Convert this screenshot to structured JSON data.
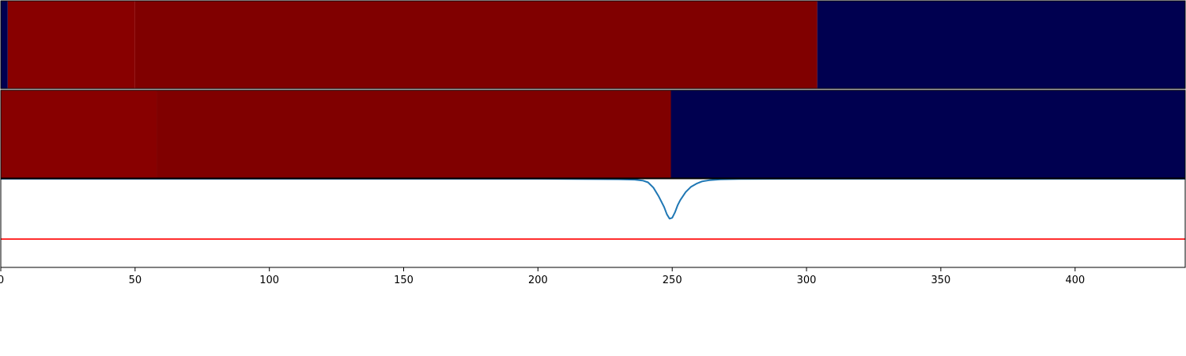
{
  "chart_data": [
    {
      "type": "heatmap",
      "panel": "top",
      "segments": [
        {
          "x_start": 0,
          "x_end": 2.6,
          "color": "#000050"
        },
        {
          "x_start": 2.6,
          "x_end": 50,
          "color": "#880000"
        },
        {
          "x_start": 50,
          "x_end": 304,
          "color": "#800000"
        },
        {
          "x_start": 304,
          "x_end": 441,
          "color": "#000050"
        }
      ]
    },
    {
      "type": "heatmap",
      "panel": "middle",
      "segments": [
        {
          "x_start": 0,
          "x_end": 58,
          "color": "#880000"
        },
        {
          "x_start": 58,
          "x_end": 249.5,
          "color": "#800000"
        },
        {
          "x_start": 249.5,
          "x_end": 441,
          "color": "#000050"
        }
      ]
    },
    {
      "type": "line",
      "panel": "bottom",
      "ylim": [
        -1.0,
        0.0
      ],
      "series": [
        {
          "color": "#1f77b4",
          "x": [
            0,
            100,
            200,
            230,
            236,
            239,
            241,
            243,
            245,
            247,
            248,
            249,
            250,
            251,
            252,
            253,
            255,
            257,
            259,
            261,
            264,
            268,
            275,
            300,
            441
          ],
          "y": [
            0,
            0,
            0,
            -0.005,
            -0.01,
            -0.02,
            -0.04,
            -0.1,
            -0.2,
            -0.32,
            -0.4,
            -0.45,
            -0.44,
            -0.38,
            -0.3,
            -0.24,
            -0.15,
            -0.09,
            -0.055,
            -0.03,
            -0.015,
            -0.007,
            -0.002,
            0,
            0
          ]
        }
      ],
      "hline": {
        "y": -0.68,
        "color": "#ff0000"
      }
    }
  ],
  "x_axis": {
    "xlim": [
      0,
      441
    ],
    "ticks": [
      0,
      50,
      100,
      150,
      200,
      250,
      300,
      350,
      400
    ],
    "tick_labels": [
      "0",
      "50",
      "100",
      "150",
      "200",
      "250",
      "300",
      "350",
      "400"
    ]
  }
}
